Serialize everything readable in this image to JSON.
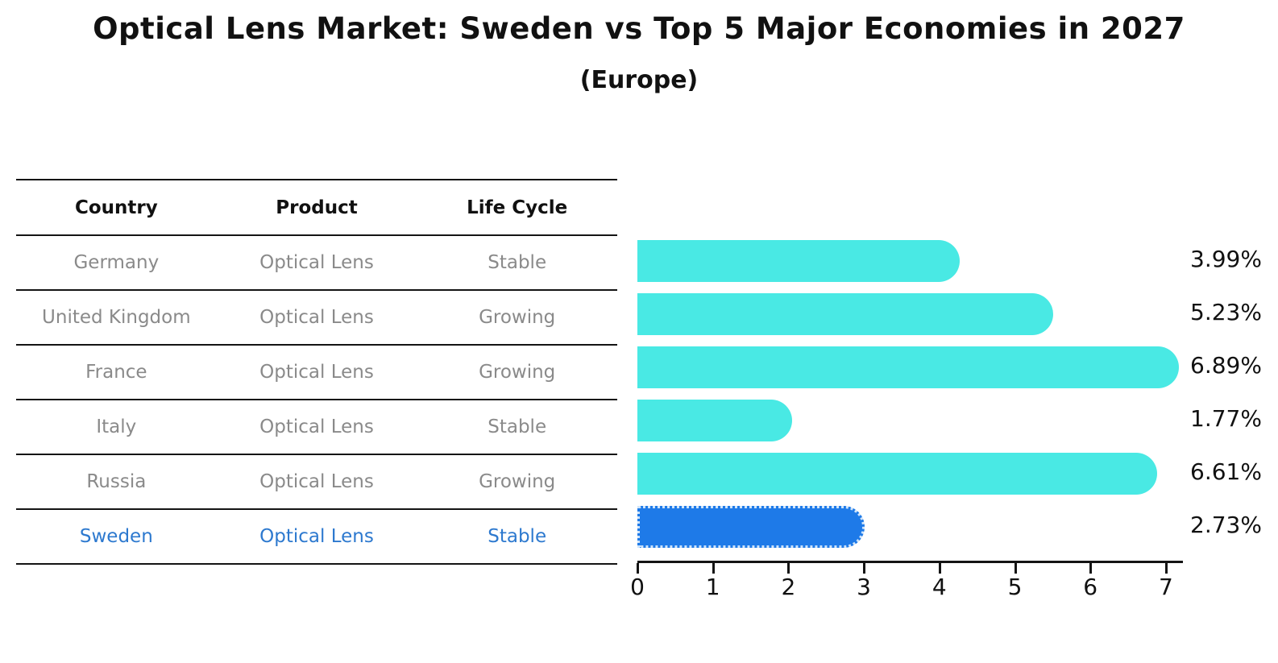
{
  "title": "Optical Lens Market: Sweden vs Top 5 Major Economies in 2027",
  "subtitle": "(Europe)",
  "table": {
    "headers": [
      "Country",
      "Product",
      "Life Cycle"
    ],
    "rows": [
      {
        "country": "Germany",
        "product": "Optical Lens",
        "life_cycle": "Stable",
        "highlight": false
      },
      {
        "country": "United Kingdom",
        "product": "Optical Lens",
        "life_cycle": "Growing",
        "highlight": false
      },
      {
        "country": "France",
        "product": "Optical Lens",
        "life_cycle": "Growing",
        "highlight": false
      },
      {
        "country": "Italy",
        "product": "Optical Lens",
        "life_cycle": "Stable",
        "highlight": false
      },
      {
        "country": "Russia",
        "product": "Optical Lens",
        "life_cycle": "Growing",
        "highlight": false
      },
      {
        "country": "Sweden",
        "product": "Optical Lens",
        "life_cycle": "Stable",
        "highlight": true
      }
    ]
  },
  "chart_data": {
    "type": "bar",
    "orientation": "horizontal",
    "categories": [
      "Germany",
      "United Kingdom",
      "France",
      "Italy",
      "Russia",
      "Sweden"
    ],
    "values": [
      3.99,
      5.23,
      6.89,
      1.77,
      6.61,
      2.73
    ],
    "value_labels": [
      "3.99%",
      "5.23%",
      "6.89%",
      "1.77%",
      "6.61%",
      "2.73%"
    ],
    "title": "Optical Lens Market: Sweden vs Top 5 Major Economies in 2027 (Europe)",
    "xlabel": "",
    "ylabel": "",
    "xlim": [
      0,
      7.23
    ],
    "xticks": [
      0,
      1,
      2,
      3,
      4,
      5,
      6,
      7
    ],
    "grid": false,
    "legend": false,
    "highlight_index": 5,
    "colors": {
      "bar": "#49E9E4",
      "highlight_bar": "#1E7AE8",
      "highlight_bar_border": "#CFE4FA",
      "highlight_text": "#2D79CF",
      "value_label_text": "#111111",
      "table_text": "#8A8A8A",
      "header_text": "#111111"
    }
  }
}
